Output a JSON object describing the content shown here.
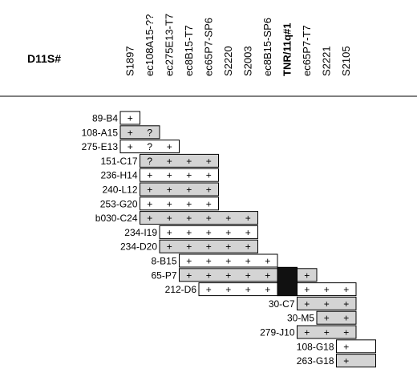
{
  "title": "D11S#",
  "columns": [
    {
      "label": "S1897",
      "bold": false
    },
    {
      "label": "ec108A15-??",
      "bold": false
    },
    {
      "label": "ec275E13-T7",
      "bold": false
    },
    {
      "label": "ec8B15-T7",
      "bold": false
    },
    {
      "label": "ec65P7-SP6",
      "bold": false
    },
    {
      "label": "S2220",
      "bold": false
    },
    {
      "label": "S2003",
      "bold": false
    },
    {
      "label": "ec8B15-SP6",
      "bold": false
    },
    {
      "label": "TNR/11q#1",
      "bold": true
    },
    {
      "label": "ec65P7-T7",
      "bold": false
    },
    {
      "label": "S2221",
      "bold": false
    },
    {
      "label": "S2105",
      "bold": false
    }
  ],
  "colors": {
    "shaded": "#d4d4d4",
    "white": "#ffffff",
    "dark": "#111111",
    "border": "#000000"
  },
  "rows": [
    {
      "name": "89-B4",
      "start": 0,
      "end": 0,
      "shade": "white",
      "marks": [
        "+"
      ]
    },
    {
      "name": "108-A15",
      "start": 0,
      "end": 1,
      "shade": "shaded",
      "marks": [
        "+",
        "?"
      ]
    },
    {
      "name": "275-E13",
      "start": 0,
      "end": 2,
      "shade": "white",
      "marks": [
        "+",
        "?",
        "+"
      ]
    },
    {
      "name": "151-C17",
      "start": 1,
      "end": 4,
      "shade": "shaded",
      "marks": [
        "?",
        "+",
        "+",
        "+"
      ]
    },
    {
      "name": "236-H14",
      "start": 1,
      "end": 4,
      "shade": "white",
      "marks": [
        "+",
        "+",
        "+",
        "+"
      ]
    },
    {
      "name": "240-L12",
      "start": 1,
      "end": 4,
      "shade": "shaded",
      "marks": [
        "+",
        "+",
        "+",
        "+"
      ]
    },
    {
      "name": "253-G20",
      "start": 1,
      "end": 4,
      "shade": "white",
      "marks": [
        "+",
        "+",
        "+",
        "+"
      ]
    },
    {
      "name": "b030-C24",
      "start": 1,
      "end": 6,
      "shade": "shaded",
      "marks": [
        "+",
        "+",
        "+",
        "+",
        "+",
        "+"
      ]
    },
    {
      "name": "234-I19",
      "start": 2,
      "end": 6,
      "shade": "white",
      "marks": [
        "+",
        "+",
        "+",
        "+",
        "+"
      ]
    },
    {
      "name": "234-D20",
      "start": 2,
      "end": 6,
      "shade": "shaded",
      "marks": [
        "+",
        "+",
        "+",
        "+",
        "+"
      ]
    },
    {
      "name": "8-B15",
      "start": 3,
      "end": 7,
      "shade": "white",
      "marks": [
        "+",
        "+",
        "+",
        "+",
        "+"
      ]
    },
    {
      "name": "65-P7",
      "start": 3,
      "end": 9,
      "shade": "shaded",
      "marks": [
        "+",
        "+",
        "+",
        "+",
        "+",
        "",
        "+"
      ]
    },
    {
      "name": "212-D6",
      "start": 4,
      "end": 11,
      "shade": "white",
      "marks": [
        "+",
        "+",
        "+",
        "+",
        "",
        "+",
        "+",
        "+"
      ]
    },
    {
      "name": "30-C7",
      "start": 9,
      "end": 11,
      "shade": "shaded",
      "marks": [
        "+",
        "+",
        "+"
      ]
    },
    {
      "name": "30-M5",
      "start": 10,
      "end": 11,
      "shade": "shaded",
      "marks": [
        "+",
        "+"
      ]
    },
    {
      "name": "279-J10",
      "start": 9,
      "end": 11,
      "shade": "shaded",
      "marks": [
        "+",
        "+",
        "+"
      ]
    },
    {
      "name": "108-G18",
      "start": 11,
      "end": 12,
      "shade": "white",
      "marks": [
        "+",
        ""
      ]
    },
    {
      "name": "263-G18",
      "start": 11,
      "end": 12,
      "shade": "shaded",
      "marks": [
        "+",
        ""
      ]
    }
  ],
  "dark_block": {
    "column": 8,
    "from_row": 11,
    "to_row": 12
  }
}
